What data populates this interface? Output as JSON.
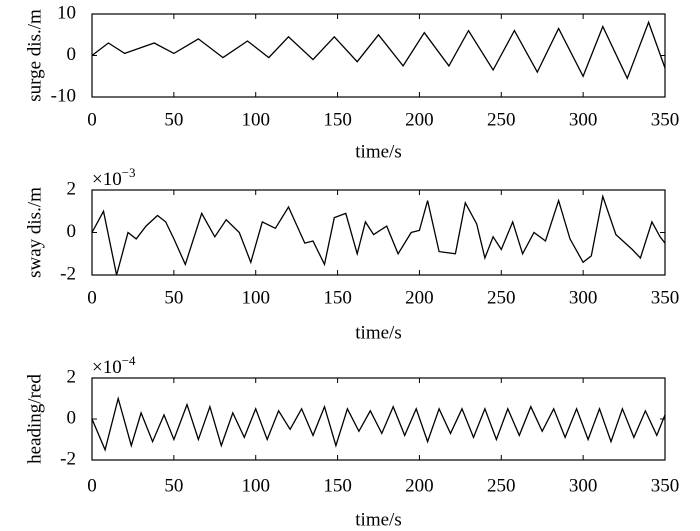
{
  "chart_data": [
    {
      "type": "line",
      "x_label": "time/s",
      "y_label": "surge dis./m",
      "color": "#000000",
      "x": [
        0,
        10,
        20,
        38,
        50,
        65,
        80,
        95,
        108,
        120,
        135,
        148,
        162,
        175,
        190,
        203,
        218,
        230,
        245,
        258,
        272,
        285,
        300,
        312,
        327,
        340,
        350
      ],
      "values": [
        0,
        3,
        0.5,
        3,
        0.5,
        4,
        -0.5,
        3.5,
        -0.5,
        4.5,
        -1,
        4.5,
        -1.5,
        5,
        -2.5,
        5.5,
        -2.5,
        6,
        -3.5,
        6,
        -4,
        6.5,
        -5,
        7,
        -5.5,
        8,
        -3
      ],
      "xlim": [
        0,
        350
      ],
      "xticks": [
        0,
        50,
        100,
        150,
        200,
        250,
        300,
        350
      ],
      "ylim": [
        -10,
        10
      ],
      "yticks": [
        -10,
        0,
        10
      ]
    },
    {
      "type": "line",
      "x_label": "time/s",
      "y_label": "sway dis./m",
      "color": "#000000",
      "y_multiplier": {
        "base": "×10",
        "exponent": "−3"
      },
      "x": [
        0,
        7,
        15,
        22,
        27,
        33,
        40,
        45,
        50,
        57,
        67,
        75,
        82,
        90,
        97,
        104,
        112,
        120,
        130,
        135,
        142,
        148,
        155,
        162,
        167,
        172,
        180,
        187,
        195,
        200,
        205,
        212,
        222,
        228,
        235,
        240,
        245,
        250,
        257,
        263,
        270,
        277,
        285,
        292,
        300,
        305,
        312,
        320,
        330,
        335,
        342,
        347,
        350
      ],
      "values": [
        0,
        1,
        -2,
        0,
        -0.3,
        0.3,
        0.8,
        0.5,
        -0.3,
        -1.5,
        0.9,
        -0.2,
        0.6,
        0,
        -1.4,
        0.5,
        0.2,
        1.2,
        -0.5,
        -0.4,
        -1.5,
        0.7,
        0.9,
        -1,
        0.5,
        -0.1,
        0.3,
        -1,
        0,
        0.1,
        1.5,
        -0.9,
        -1,
        1.4,
        0.4,
        -1.2,
        -0.2,
        -0.8,
        0.5,
        -1,
        0,
        -0.4,
        1.5,
        -0.3,
        -1.4,
        -1.1,
        1.7,
        -0.1,
        -0.8,
        -1.2,
        0.5,
        -0.2,
        -0.5
      ],
      "xlim": [
        0,
        350
      ],
      "xticks": [
        0,
        50,
        100,
        150,
        200,
        250,
        300,
        350
      ],
      "ylim": [
        -2,
        2
      ],
      "yticks": [
        -2,
        0,
        2
      ]
    },
    {
      "type": "line",
      "x_label": "time/s",
      "y_label": "heading/red",
      "color": "#000000",
      "y_multiplier": {
        "base": "×10",
        "exponent": "−4"
      },
      "x": [
        0,
        8,
        16,
        24,
        30,
        37,
        44,
        50,
        58,
        65,
        72,
        79,
        86,
        93,
        100,
        107,
        114,
        121,
        128,
        135,
        142,
        149,
        156,
        163,
        170,
        177,
        184,
        191,
        198,
        205,
        212,
        219,
        226,
        233,
        240,
        247,
        254,
        261,
        268,
        275,
        282,
        289,
        296,
        303,
        310,
        317,
        324,
        331,
        338,
        345,
        350
      ],
      "values": [
        0,
        -1.5,
        1,
        -1.3,
        0.3,
        -1.1,
        0.2,
        -1,
        0.7,
        -1,
        0.6,
        -1.3,
        0.3,
        -0.9,
        0.5,
        -1,
        0.4,
        -0.5,
        0.5,
        -0.8,
        0.6,
        -1.3,
        0.5,
        -0.6,
        0.4,
        -0.7,
        0.6,
        -0.8,
        0.5,
        -1.1,
        0.5,
        -0.7,
        0.5,
        -0.9,
        0.5,
        -1,
        0.5,
        -0.8,
        0.6,
        -0.6,
        0.5,
        -0.9,
        0.5,
        -1,
        0.5,
        -1.1,
        0.5,
        -0.9,
        0.4,
        -0.8,
        0.2
      ],
      "xlim": [
        0,
        350
      ],
      "xticks": [
        0,
        50,
        100,
        150,
        200,
        250,
        300,
        350
      ],
      "ylim": [
        -2,
        2
      ],
      "yticks": [
        -2,
        0,
        2
      ]
    }
  ]
}
